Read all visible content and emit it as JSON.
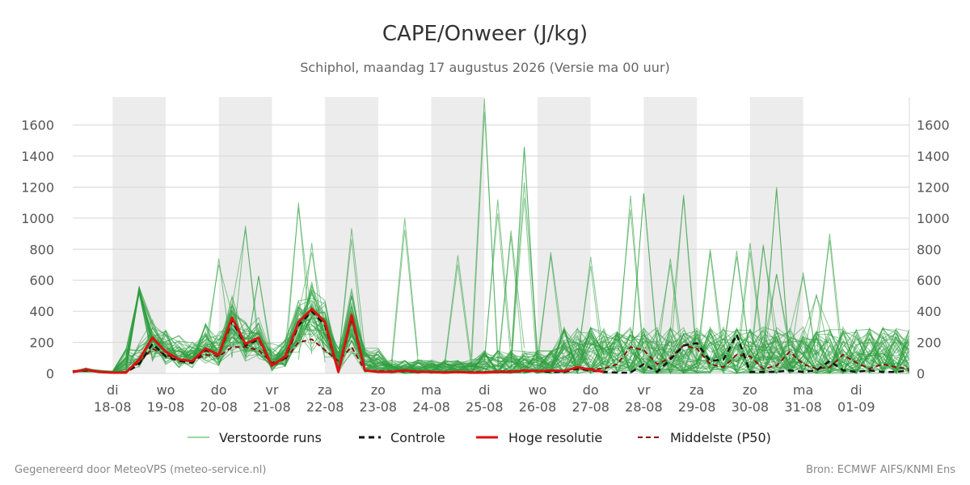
{
  "chart_data": {
    "type": "line",
    "title": "CAPE/Onweer (J/kg)",
    "subtitle": "Schiphol, maandag 17 augustus 2026 (Versie ma 00 uur)",
    "y_ticks": [
      0,
      200,
      400,
      600,
      800,
      1000,
      1200,
      1400,
      1600
    ],
    "ylim": [
      0,
      1780
    ],
    "xlim": [
      -0.75,
      15
    ],
    "x_ticks": [
      {
        "day": "di",
        "date": "18-08"
      },
      {
        "day": "wo",
        "date": "19-08"
      },
      {
        "day": "do",
        "date": "20-08"
      },
      {
        "day": "vr",
        "date": "21-08"
      },
      {
        "day": "za",
        "date": "22-08"
      },
      {
        "day": "zo",
        "date": "23-08"
      },
      {
        "day": "ma",
        "date": "24-08"
      },
      {
        "day": "di",
        "date": "25-08"
      },
      {
        "day": "wo",
        "date": "26-08"
      },
      {
        "day": "do",
        "date": "27-08"
      },
      {
        "day": "vr",
        "date": "28-08"
      },
      {
        "day": "za",
        "date": "29-08"
      },
      {
        "day": "zo",
        "date": "30-08"
      },
      {
        "day": "ma",
        "date": "31-08"
      },
      {
        "day": "di",
        "date": "01-09"
      }
    ],
    "shaded_days": [
      0,
      2,
      4,
      6,
      8,
      10,
      12
    ],
    "grid": true,
    "legend_position": "bottom",
    "legend": [
      {
        "label": "Verstoorde runs",
        "color": "#3aa845",
        "style": "thin"
      },
      {
        "label": "Controle",
        "color": "#111111",
        "style": "dashed"
      },
      {
        "label": "Hoge resolutie",
        "color": "#dd1111",
        "style": "solid"
      },
      {
        "label": "Middelste (P50)",
        "color": "#8b1010",
        "style": "dashed"
      }
    ],
    "series": [
      {
        "name": "Hoge resolutie",
        "x": [
          -0.75,
          -0.5,
          -0.25,
          0,
          0.25,
          0.5,
          0.75,
          1,
          1.25,
          1.5,
          1.75,
          2,
          2.25,
          2.5,
          2.75,
          3,
          3.25,
          3.5,
          3.75,
          4,
          4.25,
          4.5,
          4.75,
          5,
          5.25,
          5.5,
          5.75,
          6,
          6.25,
          6.5,
          6.75,
          7,
          7.25,
          7.5,
          7.75,
          8,
          8.25,
          8.5,
          8.75,
          9,
          9.25
        ],
        "values": [
          10,
          25,
          10,
          5,
          5,
          90,
          230,
          140,
          90,
          80,
          160,
          120,
          360,
          190,
          230,
          50,
          110,
          330,
          415,
          330,
          10,
          375,
          20,
          10,
          10,
          20,
          10,
          10,
          5,
          10,
          5,
          5,
          10,
          10,
          20,
          15,
          20,
          15,
          40,
          25,
          10
        ]
      },
      {
        "name": "Controle",
        "x": [
          -0.75,
          -0.5,
          -0.25,
          0,
          0.25,
          0.5,
          0.75,
          1,
          1.25,
          1.5,
          1.75,
          2,
          2.25,
          2.5,
          2.75,
          3,
          3.25,
          3.5,
          3.75,
          4,
          4.25,
          4.5,
          4.75,
          5,
          5.25,
          5.5,
          5.75,
          6,
          6.25,
          6.5,
          6.75,
          7,
          7.25,
          7.5,
          7.75,
          8,
          8.25,
          8.5,
          8.75,
          9,
          9.25,
          9.5,
          9.75,
          10,
          10.25,
          10.5,
          10.75,
          11,
          11.25,
          11.5,
          11.75,
          12,
          12.25,
          12.5,
          12.75,
          13,
          13.25,
          13.5,
          13.75,
          14,
          14.25,
          14.5,
          14.75,
          15
        ],
        "values": [
          10,
          20,
          10,
          5,
          5,
          60,
          190,
          110,
          80,
          70,
          150,
          120,
          340,
          180,
          220,
          50,
          100,
          310,
          400,
          310,
          10,
          360,
          20,
          10,
          10,
          15,
          10,
          10,
          5,
          10,
          5,
          5,
          10,
          10,
          15,
          15,
          10,
          10,
          30,
          20,
          10,
          5,
          5,
          60,
          10,
          90,
          180,
          195,
          80,
          90,
          250,
          10,
          10,
          10,
          20,
          10,
          20,
          80,
          20,
          10,
          20,
          10,
          10,
          20
        ]
      },
      {
        "name": "Middelste (P50)",
        "x": [
          -0.75,
          -0.5,
          -0.25,
          0,
          0.25,
          0.5,
          0.75,
          1,
          1.25,
          1.5,
          1.75,
          2,
          2.25,
          2.5,
          2.75,
          3,
          3.25,
          3.5,
          3.75,
          4,
          4.25,
          4.5,
          4.75,
          5,
          5.25,
          5.5,
          5.75,
          6,
          6.25,
          6.5,
          6.75,
          7,
          7.25,
          7.5,
          7.75,
          8,
          8.25,
          8.5,
          8.75,
          9,
          9.25,
          9.5,
          9.75,
          10,
          10.25,
          10.5,
          10.75,
          11,
          11.25,
          11.5,
          11.75,
          12,
          12.25,
          12.5,
          12.75,
          13,
          13.25,
          13.5,
          13.75,
          14,
          14.25,
          14.5,
          14.75,
          15
        ],
        "values": [
          15,
          20,
          10,
          5,
          10,
          70,
          160,
          120,
          90,
          80,
          120,
          110,
          170,
          170,
          150,
          70,
          90,
          200,
          220,
          150,
          80,
          170,
          20,
          15,
          15,
          20,
          15,
          10,
          10,
          10,
          10,
          10,
          15,
          15,
          15,
          20,
          15,
          20,
          30,
          30,
          30,
          60,
          170,
          150,
          60,
          100,
          180,
          160,
          60,
          40,
          120,
          110,
          30,
          50,
          140,
          60,
          30,
          40,
          120,
          70,
          30,
          60,
          40,
          30
        ]
      }
    ],
    "ensemble": {
      "name": "Verstoorde runs",
      "member_count": 50,
      "x_step": 0.25,
      "x_start": -0.75,
      "peaks": [
        {
          "x": 0.5,
          "y": 560
        },
        {
          "x": 2.0,
          "y": 740
        },
        {
          "x": 2.5,
          "y": 950
        },
        {
          "x": 2.75,
          "y": 630
        },
        {
          "x": 3.5,
          "y": 1100
        },
        {
          "x": 3.75,
          "y": 840
        },
        {
          "x": 4.5,
          "y": 935
        },
        {
          "x": 5.5,
          "y": 1000
        },
        {
          "x": 6.5,
          "y": 760
        },
        {
          "x": 7.0,
          "y": 1770
        },
        {
          "x": 7.25,
          "y": 1120
        },
        {
          "x": 7.75,
          "y": 1460
        },
        {
          "x": 7.5,
          "y": 920
        },
        {
          "x": 7.75,
          "y": 1230
        },
        {
          "x": 8.25,
          "y": 780
        },
        {
          "x": 9.0,
          "y": 750
        },
        {
          "x": 9.75,
          "y": 1145
        },
        {
          "x": 10.0,
          "y": 1160
        },
        {
          "x": 10.5,
          "y": 740
        },
        {
          "x": 10.75,
          "y": 1150
        },
        {
          "x": 11.25,
          "y": 800
        },
        {
          "x": 11.75,
          "y": 790
        },
        {
          "x": 12.0,
          "y": 840
        },
        {
          "x": 12.5,
          "y": 640
        },
        {
          "x": 12.5,
          "y": 1200
        },
        {
          "x": 13.0,
          "y": 650
        },
        {
          "x": 13.5,
          "y": 900
        },
        {
          "x": 12.25,
          "y": 830
        },
        {
          "x": 13.25,
          "y": 510
        },
        {
          "x": 14.75,
          "y": 280
        }
      ]
    }
  },
  "footer": {
    "left": "Gegenereerd door MeteoVPS (meteo-service.nl)",
    "right": "Bron: ECMWF AIFS/KNMI Ens"
  }
}
